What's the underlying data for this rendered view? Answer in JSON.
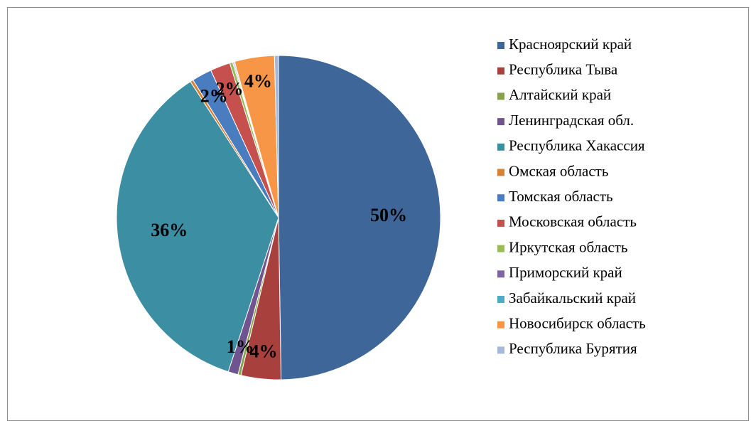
{
  "chart_data": {
    "type": "pie",
    "categories": [
      "Красноярский край",
      "Республика Тыва",
      "Алтайский край",
      "Ленинградская обл.",
      "Республика Хакассия",
      "Омская область",
      "Томская область",
      "Московская область",
      "Иркутская область",
      "Приморский край",
      "Забайкальский край",
      "Новосибирск область",
      "Республика Бурятия"
    ],
    "values": [
      50,
      4,
      0.3,
      1,
      36,
      0.3,
      2,
      2,
      0.3,
      0.1,
      0.1,
      4,
      0.4
    ],
    "value_labels": [
      "50%",
      "4%",
      null,
      "1%",
      "36%",
      null,
      "2%",
      "2%",
      null,
      null,
      null,
      "4%",
      null
    ],
    "colors": [
      "#3F6698",
      "#A8403E",
      "#87A24B",
      "#6F548F",
      "#3C8FA3",
      "#D9812F",
      "#4A7CC0",
      "#C6504D",
      "#9BBB59",
      "#8064A2",
      "#4BACC6",
      "#F79646",
      "#A5B8D9"
    ],
    "legend": "right"
  }
}
